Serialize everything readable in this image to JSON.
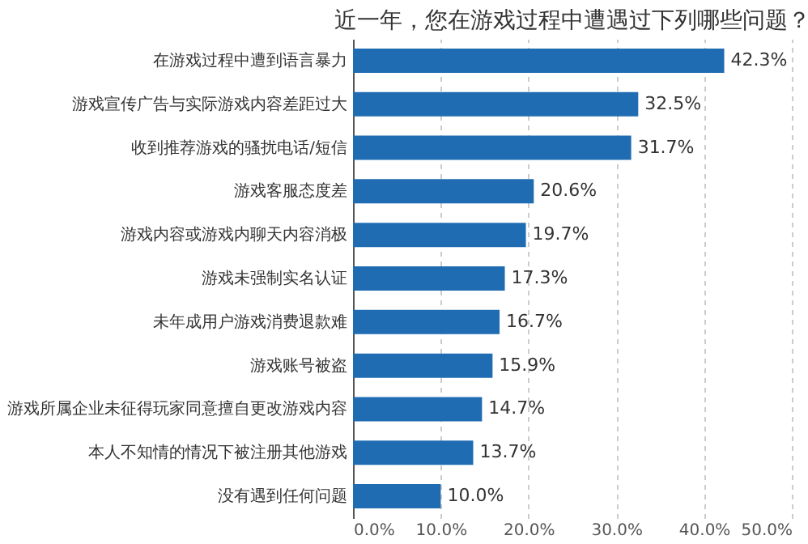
{
  "chart_data": {
    "type": "bar",
    "orientation": "horizontal",
    "title": "近一年，您在游戏过程中遭遇过下列哪些问题？",
    "categories": [
      "在游戏过程中遭到语言暴力",
      "游戏宣传广告与实际游戏内容差距过大",
      "收到推荐游戏的骚扰电话/短信",
      "游戏客服态度差",
      "游戏内容或游戏内聊天内容消极",
      "游戏未强制实名认证",
      "未年成用户游戏消费退款难",
      "游戏账号被盗",
      "游戏所属企业未征得玩家同意擅自更改游戏内容",
      "本人不知情的情况下被注册其他游戏",
      "没有遇到任何问题"
    ],
    "values": [
      42.3,
      32.5,
      31.7,
      20.6,
      19.7,
      17.3,
      16.7,
      15.9,
      14.7,
      13.7,
      10.0
    ],
    "value_labels": [
      "42.3%",
      "32.5%",
      "31.7%",
      "20.6%",
      "19.7%",
      "17.3%",
      "16.7%",
      "15.9%",
      "14.7%",
      "13.7%",
      "10.0%"
    ],
    "color": "#1f6cb3",
    "xlim": [
      0,
      50
    ],
    "xticks": [
      {
        "value": 0,
        "label": "0.0%"
      },
      {
        "value": 10,
        "label": "10.0%"
      },
      {
        "value": 20,
        "label": "20.0%"
      },
      {
        "value": 30,
        "label": "30.0%"
      },
      {
        "value": 40,
        "label": "40.0%"
      },
      {
        "value": 50,
        "label": "50.0%"
      }
    ],
    "grid": "x"
  }
}
